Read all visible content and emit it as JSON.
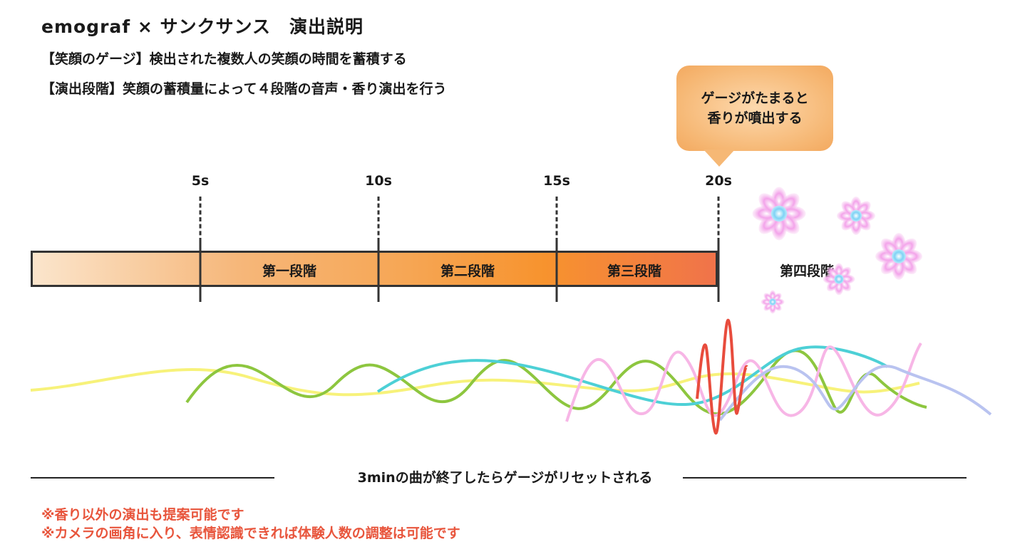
{
  "header": {
    "title": "emograf × サンクサンス　演出説明",
    "desc_gauge": "【笑顔のゲージ】検出された複数人の笑顔の時間を蓄積する",
    "desc_stage": "【演出段階】笑顔の蓄積量によって４段階の音声・香り演出を行う"
  },
  "callout": {
    "line1": "ゲージがたまると",
    "line2": "香りが噴出する"
  },
  "timeline": {
    "ticks": [
      "5s",
      "10s",
      "15s",
      "20s"
    ],
    "stages": [
      "第一段階",
      "第二段階",
      "第三段階",
      "第四段階"
    ]
  },
  "footer": {
    "reset": "3minの曲が終了したらゲージがリセットされる",
    "note1": "※香り以外の演出も提案可能です",
    "note2": "※カメラの画角に入り、表情認識できれば体験人数の調整は可能です"
  },
  "colors": {
    "accent_orange": "#f7932e",
    "note_red": "#e8553c",
    "wave_yellow": "#f7f27a",
    "wave_green": "#8dc63f",
    "wave_cyan": "#4dd0d6",
    "wave_pink": "#f7b6e6",
    "wave_red": "#e84c3d",
    "wave_lavender": "#b9c3f0"
  },
  "icons": [
    "flower-icon"
  ]
}
